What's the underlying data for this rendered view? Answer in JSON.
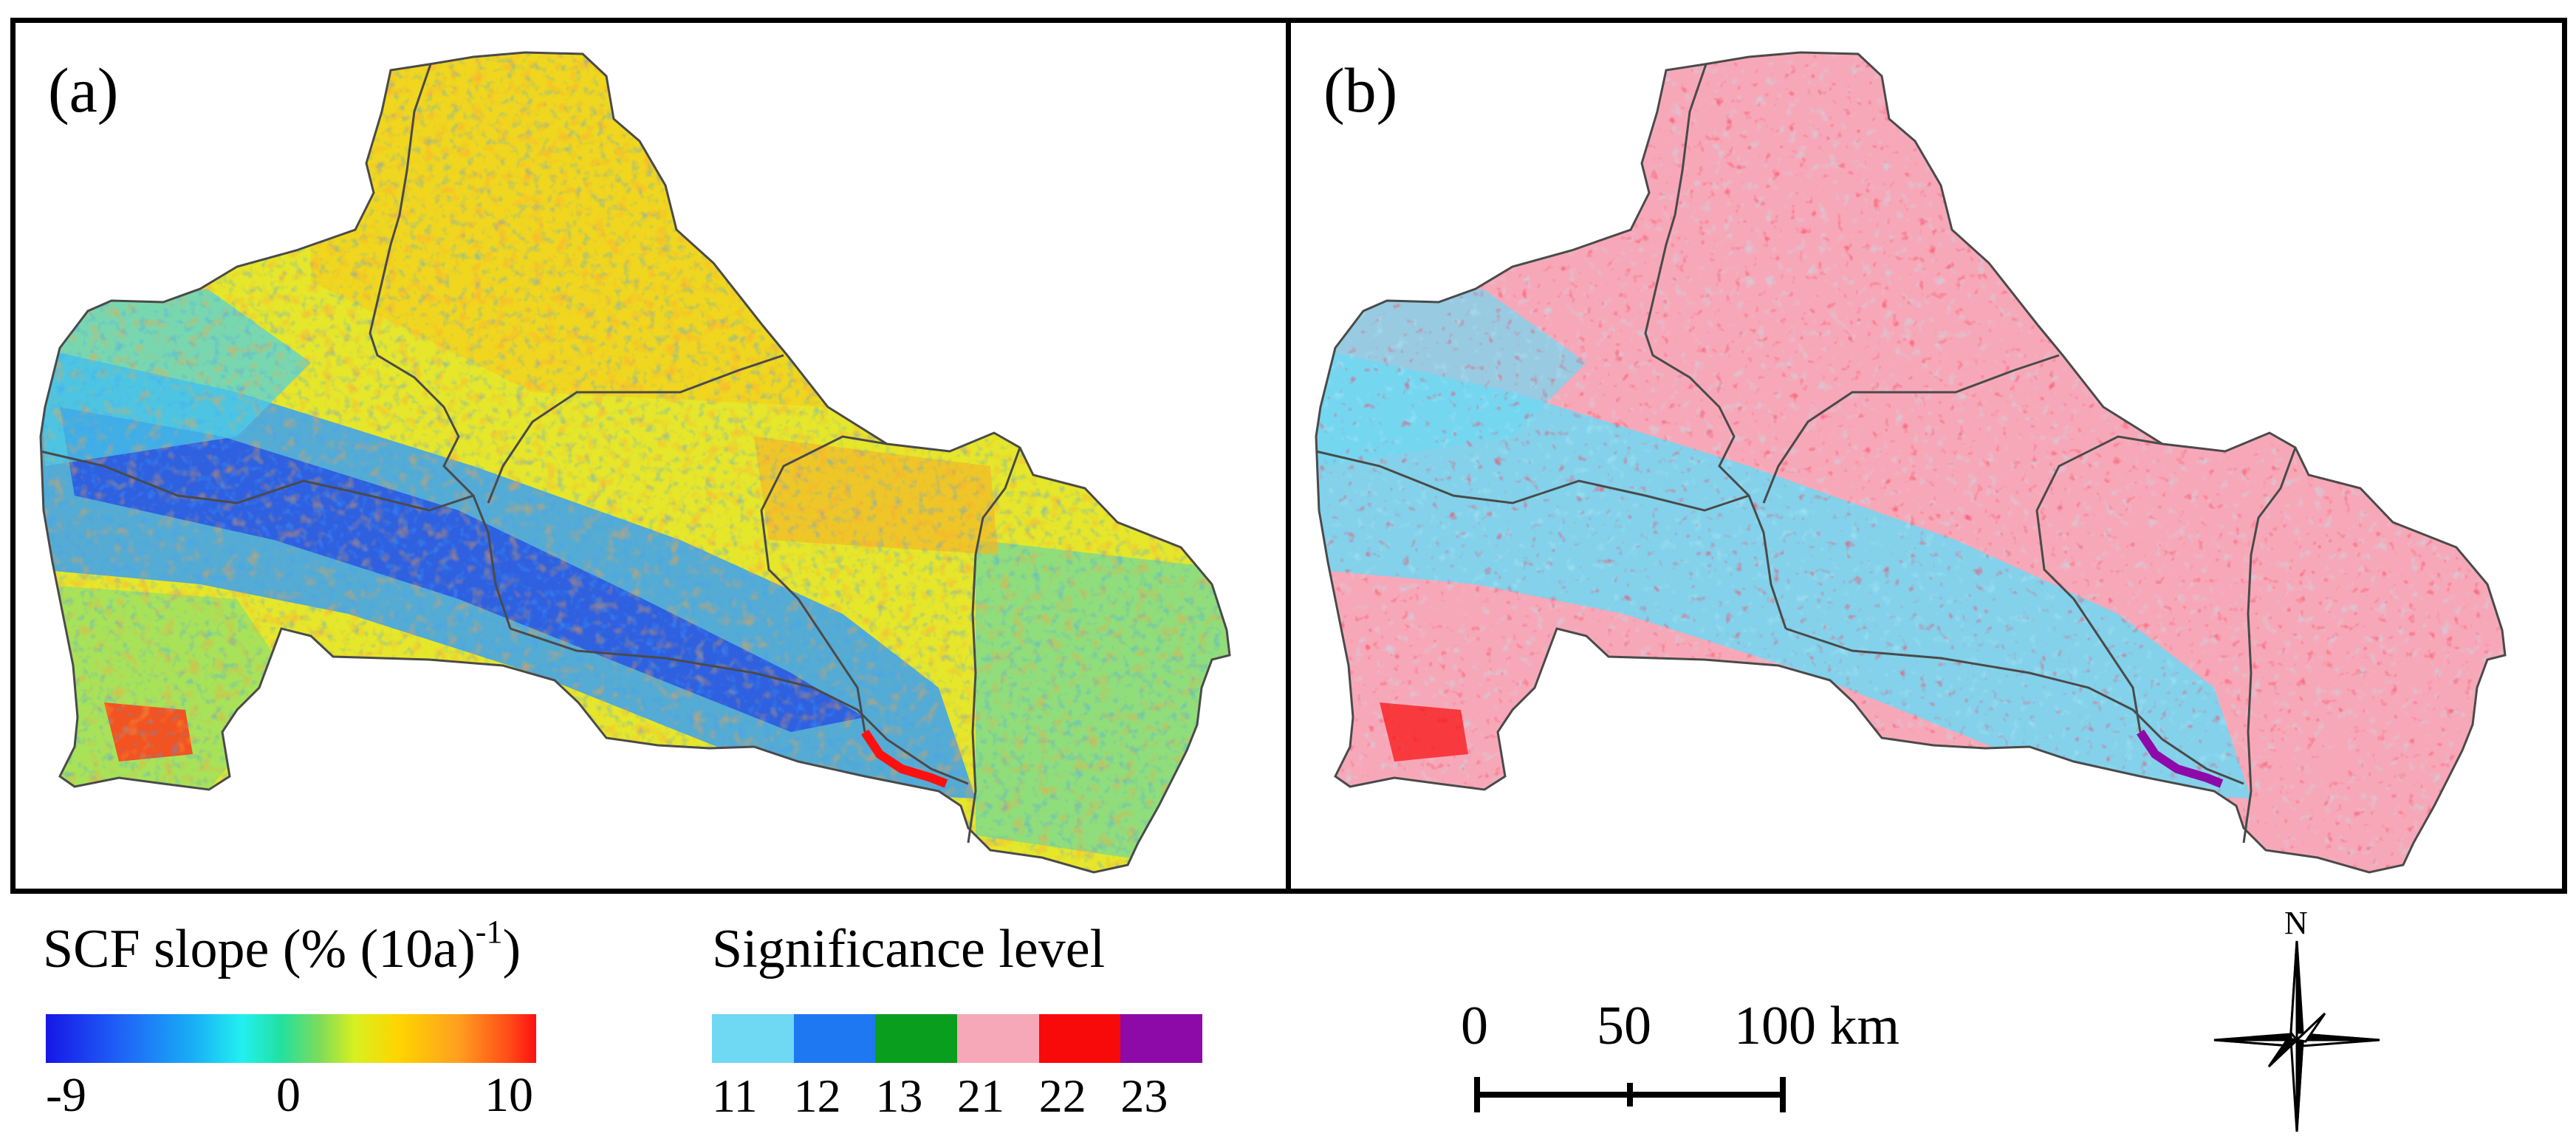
{
  "panels": {
    "a": {
      "label": "(a)"
    },
    "b": {
      "label": "(b)"
    }
  },
  "legend_slope": {
    "title": "SCF slope  (% (10a)",
    "title_sup": "-1",
    "title_close": ")",
    "ticks": [
      "-9",
      "0",
      "10"
    ]
  },
  "legend_significance": {
    "title": "Significance level",
    "classes": [
      {
        "code": "11",
        "color": "#6fd8f2"
      },
      {
        "code": "12",
        "color": "#1e78f2"
      },
      {
        "code": "13",
        "color": "#0a9e1e"
      },
      {
        "code": "21",
        "color": "#f7a8b8"
      },
      {
        "code": "22",
        "color": "#f80a0a"
      },
      {
        "code": "23",
        "color": "#8e0aa8"
      }
    ]
  },
  "scale_bar": {
    "labels": [
      "0",
      "50",
      "100 km"
    ]
  },
  "north_arrow": {
    "label": "N"
  },
  "colors": {
    "boundary": "#4a4a4a",
    "panel_border": "#000000"
  }
}
